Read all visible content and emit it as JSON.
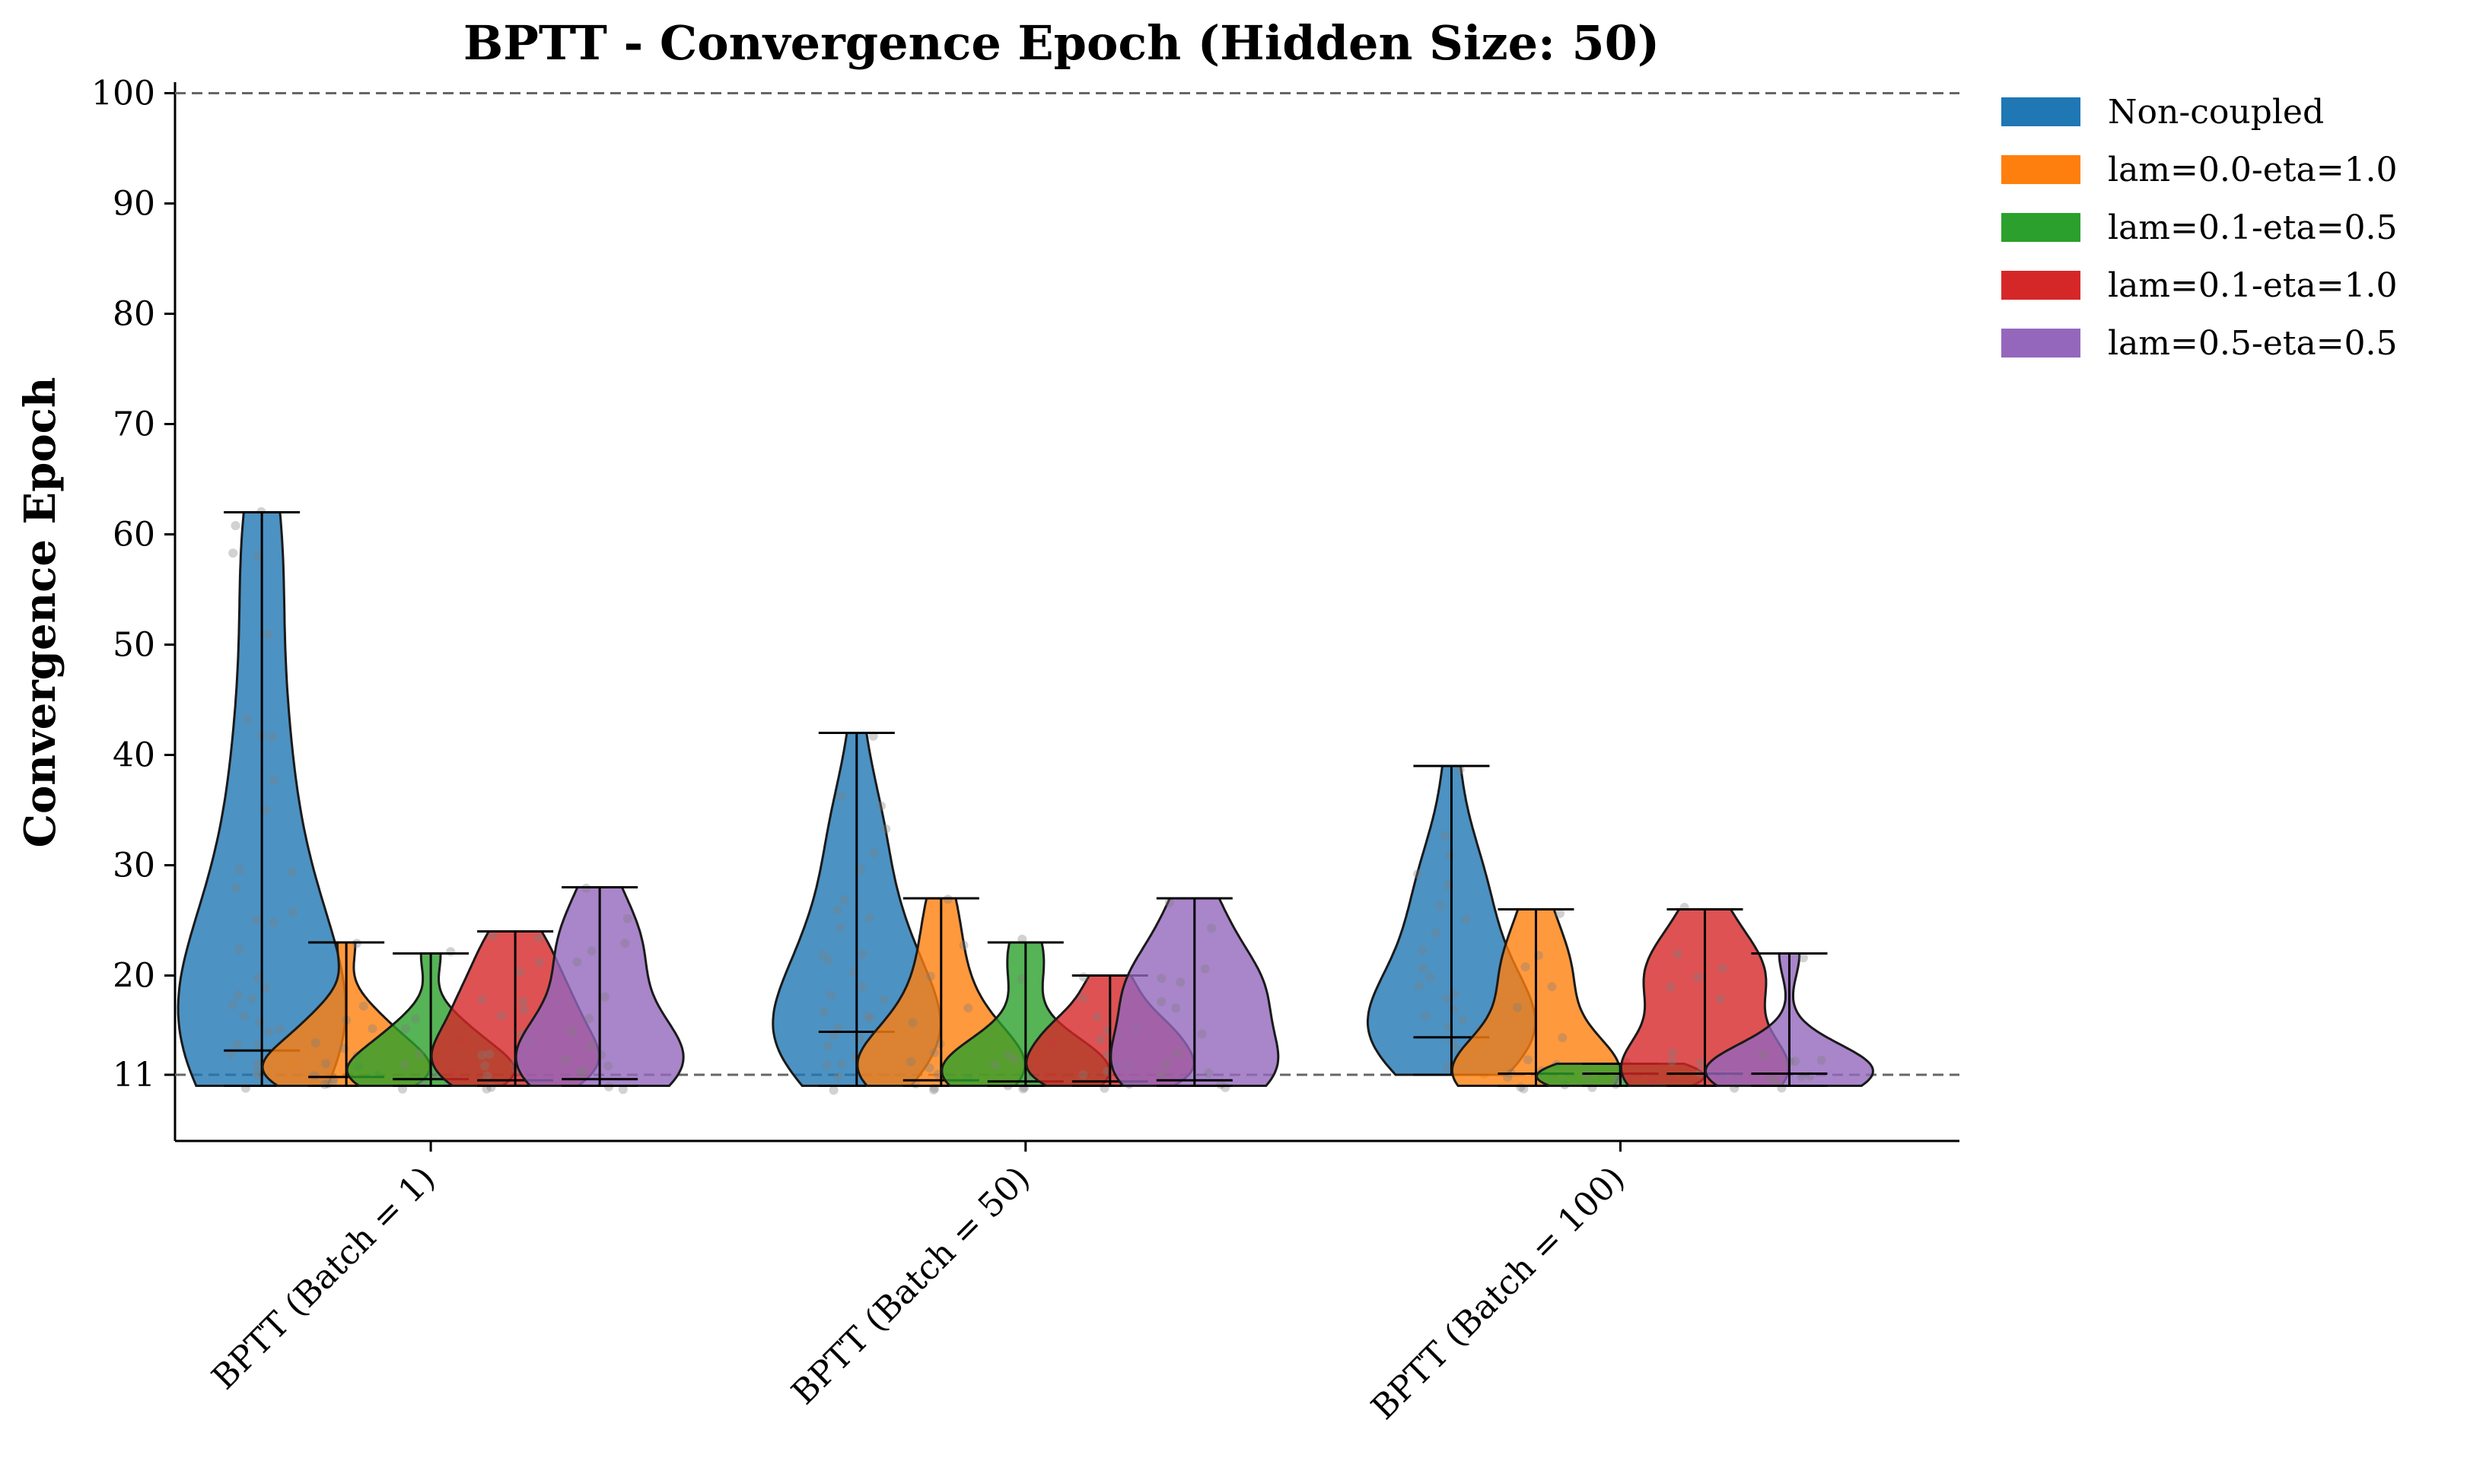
{
  "chart_data": {
    "type": "violin",
    "title": "BPTT - Convergence Epoch (Hidden Size: 50)",
    "xlabel": "",
    "ylabel": "Convergence Epoch",
    "categories": [
      "BPTT (Batch = 1)",
      "BPTT (Batch = 50)",
      "BPTT (Batch = 100)"
    ],
    "yticks": [
      11,
      20,
      30,
      40,
      50,
      60,
      70,
      80,
      90,
      100
    ],
    "ylim": [
      5,
      101
    ],
    "reference_lines": [
      11,
      100
    ],
    "grid": false,
    "legend_position": "outside-top-right",
    "series": [
      {
        "name": "Non-coupled",
        "color": "#1f77b4",
        "stats": [
          {
            "min": 10,
            "max": 62,
            "median": 13.2
          },
          {
            "min": 10,
            "max": 42,
            "median": 14.9
          },
          {
            "min": 11,
            "max": 39,
            "median": 14.4
          }
        ],
        "points": [
          [
            62,
            61,
            58,
            58,
            51,
            43,
            42,
            42,
            38,
            35,
            30,
            29,
            28,
            26,
            25,
            25,
            22,
            20,
            19,
            18,
            18,
            17,
            16,
            16,
            15,
            15,
            14,
            14,
            13,
            13,
            12,
            12,
            11,
            11,
            10
          ],
          [
            42,
            36,
            35,
            33,
            31,
            30,
            27,
            26,
            25,
            24,
            22,
            22,
            21,
            20,
            19,
            18,
            18,
            17,
            16,
            16,
            15,
            15,
            14,
            14,
            13,
            13,
            12,
            12,
            11,
            11,
            10
          ],
          [
            39,
            33,
            31,
            29,
            28,
            26,
            25,
            24,
            22,
            21,
            20,
            19,
            18,
            18,
            17,
            16,
            16,
            15,
            15,
            14,
            14,
            13,
            13,
            12,
            12,
            11
          ]
        ]
      },
      {
        "name": "lam=0.0-eta=1.0",
        "color": "#ff7f0e",
        "stats": [
          {
            "min": 10,
            "max": 23,
            "median": 10.8
          },
          {
            "min": 10,
            "max": 27,
            "median": 10.5
          },
          {
            "min": 10,
            "max": 26,
            "median": 11.1
          }
        ],
        "points": [
          [
            23,
            17,
            16,
            15,
            14,
            13,
            13,
            12,
            12,
            11,
            11,
            11,
            10,
            10,
            10
          ],
          [
            27,
            23,
            20,
            17,
            16,
            14,
            13,
            12,
            12,
            11,
            11,
            10,
            10,
            10
          ],
          [
            26,
            22,
            21,
            19,
            17,
            14,
            12,
            12,
            11,
            11,
            11,
            10,
            10,
            10
          ]
        ]
      },
      {
        "name": "lam=0.1-eta=0.5",
        "color": "#2ca02c",
        "stats": [
          {
            "min": 10,
            "max": 22,
            "median": 10.6
          },
          {
            "min": 10,
            "max": 23,
            "median": 10.4
          },
          {
            "min": 10,
            "max": 12,
            "median": 11.1
          }
        ],
        "points": [
          [
            22,
            16,
            15,
            14,
            13,
            12,
            12,
            11,
            11,
            11,
            10,
            10,
            10
          ],
          [
            23,
            20,
            14,
            13,
            12,
            12,
            11,
            11,
            10,
            10,
            10
          ],
          [
            12,
            12,
            11,
            11,
            11,
            11,
            10,
            10,
            10
          ]
        ]
      },
      {
        "name": "lam=0.1-eta=1.0",
        "color": "#d62728",
        "stats": [
          {
            "min": 10,
            "max": 24,
            "median": 10.5
          },
          {
            "min": 10,
            "max": 20,
            "median": 10.4
          },
          {
            "min": 10,
            "max": 26,
            "median": 11.1
          }
        ],
        "points": [
          [
            24,
            23,
            21,
            20,
            18,
            18,
            17,
            16,
            15,
            14,
            13,
            13,
            12,
            12,
            11,
            11,
            10,
            10
          ],
          [
            20,
            18,
            16,
            15,
            15,
            14,
            13,
            12,
            12,
            11,
            11,
            10,
            10
          ],
          [
            26,
            22,
            21,
            20,
            19,
            18,
            13,
            12,
            12,
            11,
            11,
            10,
            10
          ]
        ]
      },
      {
        "name": "lam=0.5-eta=0.5",
        "color": "#9467bd",
        "stats": [
          {
            "min": 10,
            "max": 28,
            "median": 10.6
          },
          {
            "min": 10,
            "max": 27,
            "median": 10.5
          },
          {
            "min": 10,
            "max": 22,
            "median": 11.1
          }
        ],
        "points": [
          [
            28,
            25,
            23,
            22,
            21,
            18,
            16,
            15,
            14,
            13,
            12,
            12,
            11,
            11,
            10,
            10
          ],
          [
            27,
            24,
            21,
            20,
            19,
            18,
            17,
            15,
            13,
            12,
            11,
            11,
            10,
            10
          ],
          [
            22,
            13,
            12,
            12,
            12,
            11,
            11,
            11,
            10,
            10
          ]
        ]
      }
    ]
  }
}
